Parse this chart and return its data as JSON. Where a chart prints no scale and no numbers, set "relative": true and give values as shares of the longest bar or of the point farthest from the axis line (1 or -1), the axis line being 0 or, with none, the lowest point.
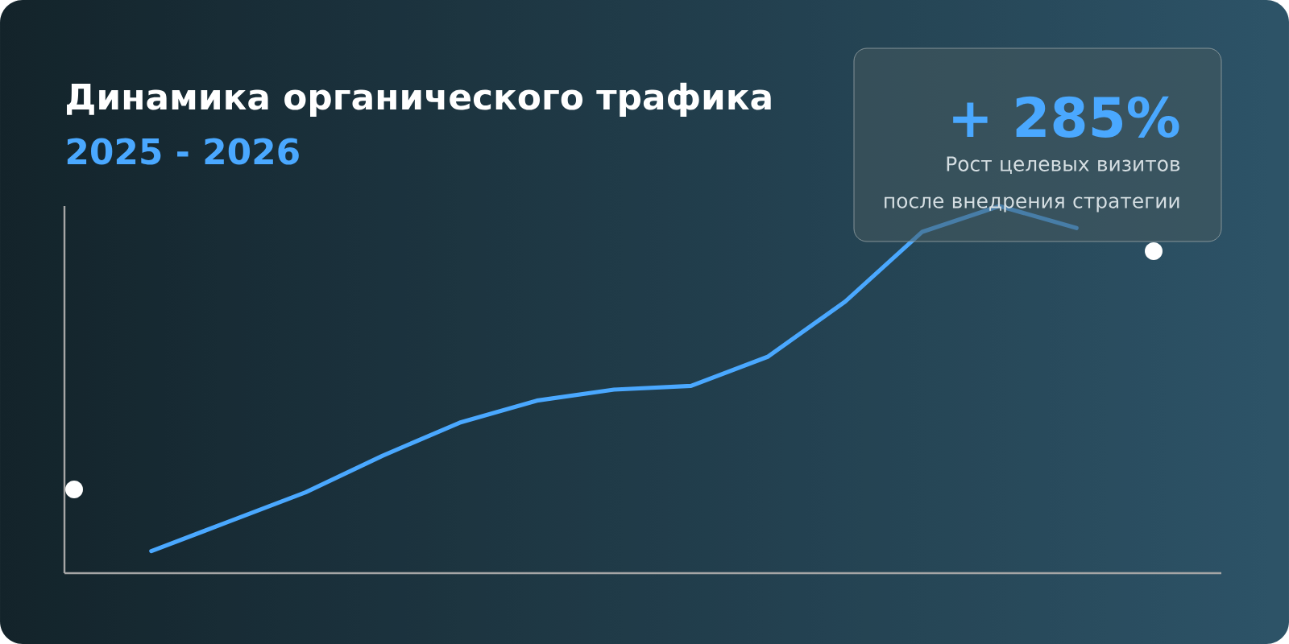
{
  "chart_data": {
    "type": "line",
    "title": "Динамика органического трафика",
    "subtitle": "2025 - 2026",
    "relative": true,
    "categories": [
      null,
      null,
      null,
      null,
      null,
      null,
      null,
      null,
      null,
      null,
      null,
      null,
      null
    ],
    "series": [
      {
        "color": "#4aa8ff",
        "values": [
          0.06,
          0.14,
          0.22,
          0.32,
          0.41,
          0.47,
          0.5,
          0.51,
          0.59,
          0.74,
          0.93,
          1,
          0.94
        ]
      }
    ],
    "annotations": [
      "+ 285%",
      "Рост целевых визитов после внедрения стратегии"
    ]
  }
}
